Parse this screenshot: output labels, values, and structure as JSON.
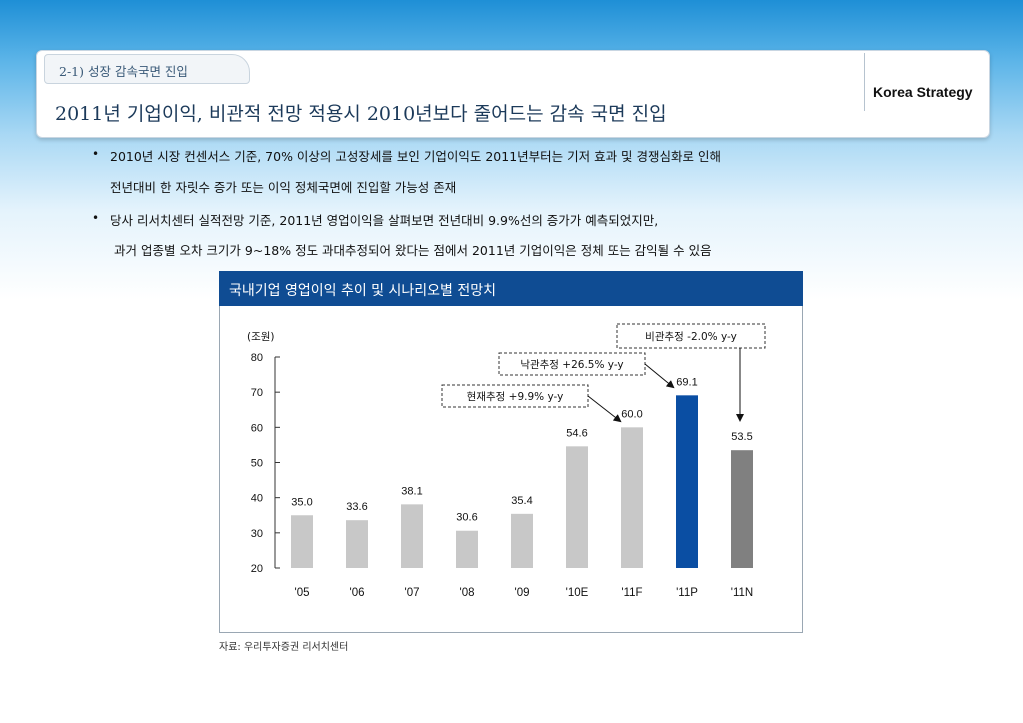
{
  "header": {
    "section": "2-1) 성장 감속국면 진입",
    "brand": "Korea Strategy",
    "title": "2011년 기업이익, 비관적 전망 적용시 2010년보다 줄어드는 감속 국면 진입"
  },
  "bullets": [
    {
      "line1": "2010년 시장 컨센서스 기준, 70% 이상의 고성장세를 보인 기업이익도 2011년부터는 기저 효과 및 경쟁심화로 인해",
      "line2": "전년대비 한 자릿수 증가 또는 이익 정체국면에 진입할 가능성 존재"
    },
    {
      "line1": "당사 리서치센터 실적전망 기준, 2011년 영업이익을 살펴보면 전년대비 9.9%선의 증가가 예측되었지만,",
      "line2": "과거 업종별 오차 크기가 9~18% 정도 과대추정되어 왔다는 점에서 2011년 기업이익은 정체 또는 감익될 수 있음"
    }
  ],
  "chart_title": "국내기업 영업이익 추이 및 시나리오별 전망치",
  "source": "자료: 우리투자증권 리서치센터",
  "colors": {
    "gray_bar": "#c8c8c8",
    "highlight_bar": "#0a4ea3",
    "pessimistic_bar": "#808080",
    "header_blue": "#0f4c93"
  },
  "chart_data": {
    "type": "bar",
    "unit_label": "(조원)",
    "categories": [
      "'05",
      "'06",
      "'07",
      "'08",
      "'09",
      "'10E",
      "'11F",
      "'11P",
      "'11N"
    ],
    "values": [
      35.0,
      33.6,
      38.1,
      30.6,
      35.4,
      54.6,
      60.0,
      69.1,
      53.5
    ],
    "value_labels": [
      "35.0",
      "33.6",
      "38.1",
      "30.6",
      "35.4",
      "54.6",
      "60.0",
      "69.1",
      "53.5"
    ],
    "bar_colors": [
      "#c8c8c8",
      "#c8c8c8",
      "#c8c8c8",
      "#c8c8c8",
      "#c8c8c8",
      "#c8c8c8",
      "#c8c8c8",
      "#0a4ea3",
      "#808080"
    ],
    "ylim": [
      20,
      80
    ],
    "yticks": [
      20,
      30,
      40,
      50,
      60,
      70,
      80
    ],
    "annotations": [
      {
        "text": "현재추정 +9.9% y-y",
        "target": "'11F"
      },
      {
        "text": "낙관추정 +26.5% y-y",
        "target": "'11P"
      },
      {
        "text": "비관추정 -2.0% y-y",
        "target": "'11N"
      }
    ]
  }
}
